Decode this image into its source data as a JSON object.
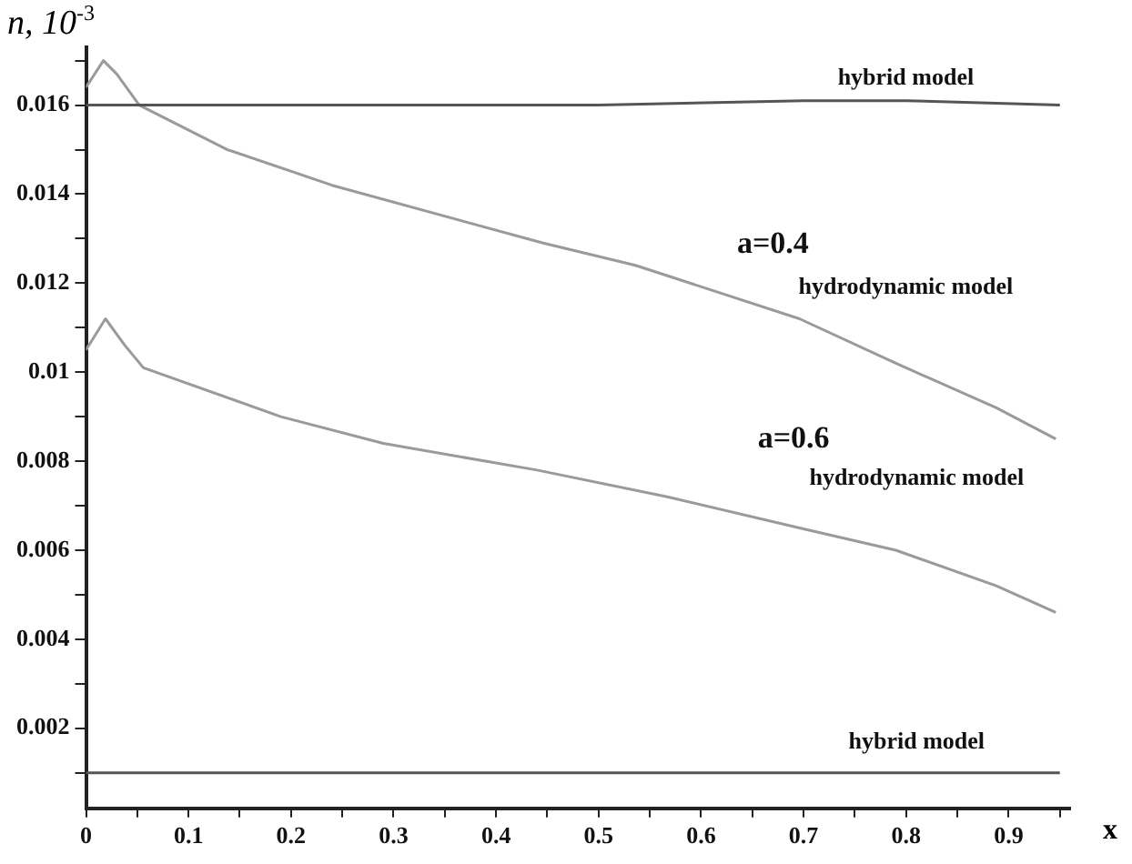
{
  "chart_data": {
    "type": "line",
    "ylabel": "n, 10$^{-3}$",
    "xlabel": "x",
    "xlim": [
      0,
      0.96
    ],
    "ylim": [
      0.0002,
      0.0173
    ],
    "xticks": [
      0,
      {
        "value": 0.05,
        "label": null
      },
      0.1,
      {
        "value": 0.15,
        "label": null
      },
      0.2,
      {
        "value": 0.25,
        "label": null
      },
      0.3,
      {
        "value": 0.35,
        "label": null
      },
      0.4,
      {
        "value": 0.45,
        "label": null
      },
      0.5,
      {
        "value": 0.55,
        "label": null
      },
      0.6,
      {
        "value": 0.65,
        "label": null
      },
      0.7,
      {
        "value": 0.75,
        "label": null
      },
      0.8,
      {
        "value": 0.85,
        "label": null
      },
      0.9,
      {
        "value": 0.95,
        "label": null
      }
    ],
    "yticks": [
      {
        "value": 0.001,
        "label": null
      },
      0.002,
      {
        "value": 0.003,
        "label": null
      },
      0.004,
      {
        "value": 0.005,
        "label": null
      },
      0.006,
      {
        "value": 0.007,
        "label": null
      },
      0.008,
      {
        "value": 0.009,
        "label": null
      },
      0.01,
      {
        "value": 0.011,
        "label": null
      },
      0.012,
      {
        "value": 0.013,
        "label": null
      },
      0.014,
      {
        "value": 0.015,
        "label": null
      },
      0.016,
      {
        "value": 0.017,
        "label": null
      }
    ],
    "grid": false,
    "legend": false,
    "marker": "none",
    "line_style": "solid",
    "series": [
      {
        "color": "#555555",
        "x": [
          0,
          0.3,
          0.5,
          0.7,
          0.8,
          0.95
        ],
        "values": [
          0.016,
          0.016,
          0.016,
          0.0161,
          0.0161,
          0.016
        ]
      },
      {
        "color": "#9a9a9a",
        "x": [
          0,
          0.017,
          0.03,
          0.052,
          0.138,
          0.24,
          0.446,
          0.536,
          0.696,
          0.79,
          0.888,
          0.946
        ],
        "values": [
          0.0164,
          0.017,
          0.0167,
          0.016,
          0.015,
          0.0142,
          0.0129,
          0.0124,
          0.0112,
          0.0102,
          0.0092,
          0.0085
        ]
      },
      {
        "color": "#9a9a9a",
        "x": [
          0,
          0.019,
          0.038,
          0.056,
          0.19,
          0.29,
          0.44,
          0.567,
          0.696,
          0.79,
          0.888,
          0.946
        ],
        "values": [
          0.0105,
          0.0112,
          0.0106,
          0.0101,
          0.009,
          0.0084,
          0.0078,
          0.0072,
          0.0065,
          0.006,
          0.0052,
          0.0046
        ]
      },
      {
        "color": "#555555",
        "x": [
          0,
          0.95
        ],
        "values": [
          0.001,
          0.001
        ]
      }
    ],
    "annotations": [
      "hybrid model",
      "a=0.4",
      "hydrodynamic model",
      "a=0.6",
      "hydrodynamic model",
      "hybrid model"
    ]
  }
}
